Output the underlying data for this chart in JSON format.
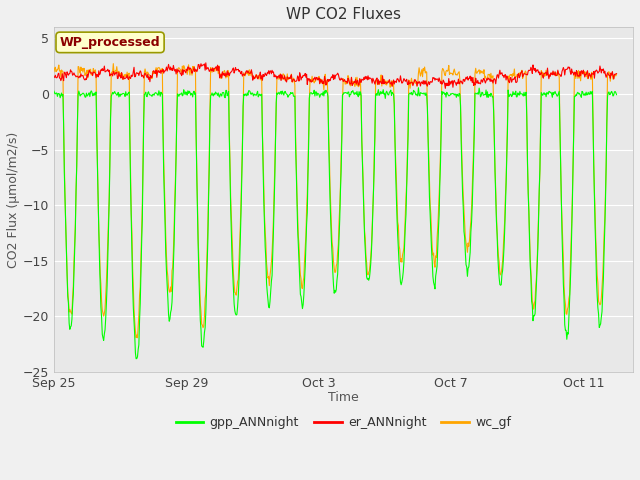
{
  "title": "WP CO2 Fluxes",
  "xlabel": "Time",
  "ylabel": "CO2 Flux (μmol/m2/s)",
  "ylim": [
    -25,
    6
  ],
  "yticks": [
    5,
    0,
    -5,
    -10,
    -15,
    -20,
    -25
  ],
  "fig_bg_color": "#f0f0f0",
  "plot_bg_color": "#e8e8e8",
  "annotation_text": "WP_processed",
  "annotation_color": "#8b0000",
  "annotation_bg": "#ffffcc",
  "annotation_border": "#999900",
  "gpp_color": "#00ff00",
  "er_color": "#ff0000",
  "wc_color": "#ffa500",
  "lw": 0.8,
  "x_tick_positions": [
    0,
    4,
    8,
    12,
    16
  ],
  "x_tick_labels": [
    "Sep 25",
    "Sep 29",
    "Oct 3",
    "Oct 7",
    "Oct 11"
  ],
  "xlim": [
    0,
    17.5
  ],
  "seed": 7,
  "n_days": 17,
  "half_hours_per_day": 48,
  "dip_depths_gpp": [
    -21,
    -22,
    -24,
    -20,
    -23,
    -20,
    -19,
    -19,
    -18,
    -17,
    -17,
    -17,
    -16,
    -17,
    -20,
    -22,
    -21
  ],
  "dip_depths_wc": [
    -20,
    -20,
    -22,
    -18,
    -21,
    -18,
    -17,
    -17,
    -16,
    -16,
    -15,
    -15,
    -14,
    -16,
    -19,
    -20,
    -19
  ],
  "er_base": [
    1.5,
    1.8,
    1.6,
    2.0,
    2.2,
    1.8,
    1.5,
    1.3,
    1.2,
    1.1,
    1.0,
    1.0,
    1.1,
    1.3,
    1.8,
    1.8,
    1.7
  ],
  "wc_night_base": [
    3.5,
    2.5,
    2.0,
    2.5,
    2.0,
    1.8,
    1.5,
    1.3,
    1.2,
    1.1,
    1.0,
    4.5,
    3.8,
    2.5,
    2.0,
    1.8,
    1.7
  ]
}
